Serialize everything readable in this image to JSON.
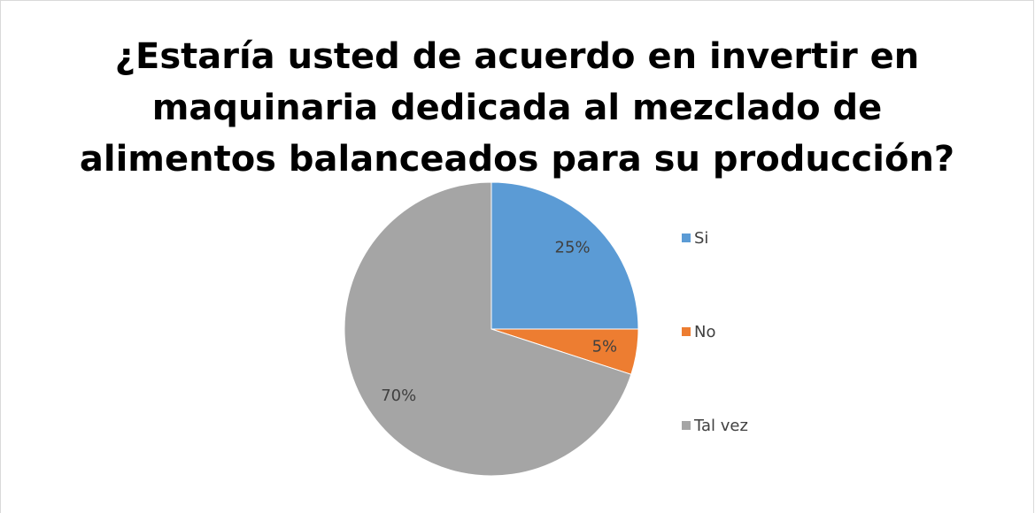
{
  "chart_data": {
    "type": "pie",
    "title": [
      "¿Estaría usted de acuerdo en invertir en",
      "maquinaria dedicada al mezclado de",
      "alimentos balanceados para su producción?"
    ],
    "categories": [
      "Si",
      "No",
      "Tal vez"
    ],
    "values": [
      25,
      5,
      70
    ],
    "value_labels": [
      "25%",
      "5%",
      "70%"
    ],
    "colors": [
      "#5b9bd5",
      "#ed7d31",
      "#a5a5a5"
    ],
    "legend": "right"
  }
}
